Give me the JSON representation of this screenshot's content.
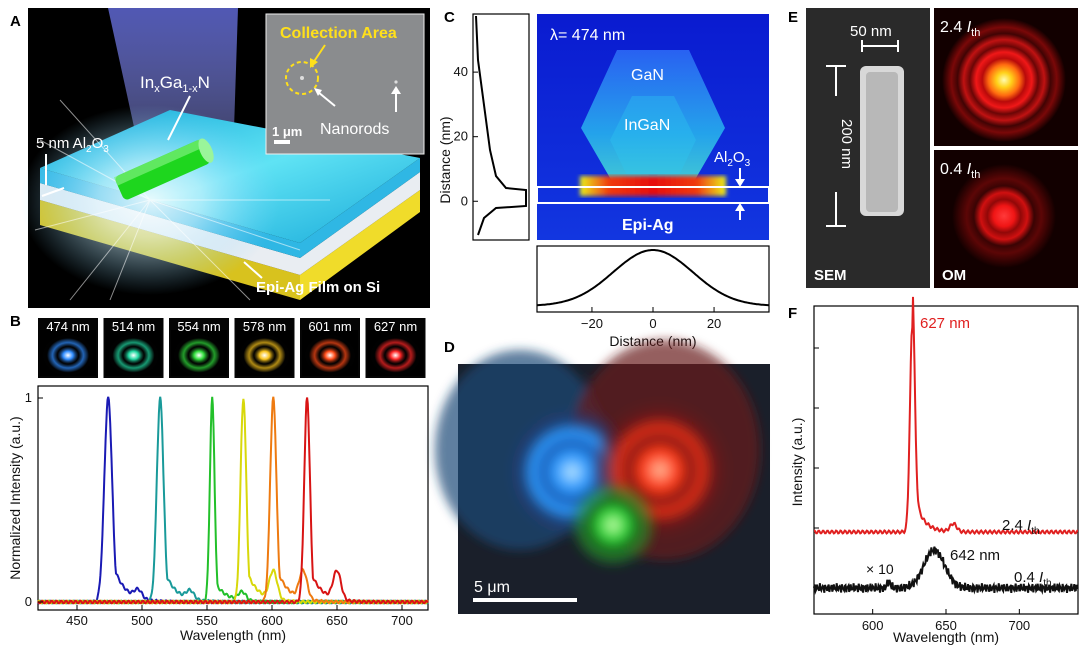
{
  "panels": {
    "A": {
      "label": "A",
      "inset": {
        "title": "Collection Area",
        "nanorods": "Nanorods",
        "scale": "1 μm"
      },
      "material": {
        "base": "In",
        "sub1": "x",
        "mid": "Ga",
        "sub2": "1-x",
        "end": "N"
      },
      "coating": {
        "pre": "5 nm Al",
        "s1": "2",
        "mid": "O",
        "s2": "3"
      },
      "film": "Epi-Ag Film on Si"
    },
    "B": {
      "label": "B",
      "spots": [
        "474 nm",
        "514 nm",
        "554 nm",
        "578 nm",
        "601 nm",
        "627 nm"
      ],
      "spot_colors": [
        "#2f8cff",
        "#1fd7a0",
        "#2fdc3a",
        "#f7c21a",
        "#ff4a16",
        "#ff2525"
      ]
    },
    "C": {
      "label": "C",
      "lambda": "λ= 474 nm",
      "layers": [
        "GaN",
        "InGaN",
        "Epi-Ag"
      ],
      "al2o3": {
        "pre": "Al",
        "s1": "2",
        "mid": "O",
        "s2": "3"
      }
    },
    "D": {
      "label": "D",
      "scale": "5 μm"
    },
    "E": {
      "label": "E",
      "width": "50 nm",
      "height": "200 nm",
      "sem": "SEM",
      "om": "OM",
      "high": "2.4",
      "low": "0.4",
      "ith": "I",
      "ith_sub": "th"
    },
    "F": {
      "label": "F",
      "peak": "627 nm",
      "peak2": "642 nm",
      "factor": "× 10",
      "high": "2.4",
      "low": "0.4",
      "ith": "I",
      "ith_sub": "th"
    }
  },
  "chart_data": [
    {
      "type": "line",
      "title": "",
      "xlabel": "Wavelength (nm)",
      "ylabel": "Normalized Intensity (a.u.)",
      "xlim": [
        420,
        720
      ],
      "ylim": [
        0,
        1
      ],
      "xticks": [
        "450",
        "500",
        "550",
        "600",
        "650",
        "700"
      ],
      "yticks": [
        "0",
        "1"
      ],
      "series": [
        {
          "name": "474 nm",
          "color": "#1a1ab4",
          "peak": 474,
          "width": 3.0,
          "tail": 0.28
        },
        {
          "name": "514 nm",
          "color": "#199a9a",
          "peak": 514,
          "width": 2.6,
          "tail": 0.22
        },
        {
          "name": "554 nm",
          "color": "#22c02a",
          "peak": 554,
          "width": 1.8,
          "tail": 0.12
        },
        {
          "name": "578 nm",
          "color": "#d8d80a",
          "peak": 578,
          "width": 2.2,
          "tail": 0.2
        },
        {
          "name": "601 nm",
          "color": "#ee7a10",
          "peak": 601,
          "width": 2.4,
          "tail": 0.22
        },
        {
          "name": "627 nm",
          "color": "#d81414",
          "peak": 627,
          "width": 2.2,
          "tail": 0.2
        }
      ]
    },
    {
      "type": "line",
      "title": "",
      "xlabel": "Distance (nm)",
      "ylabel": "Distance (nm)",
      "xlim": [
        -38,
        38
      ],
      "ylim": [
        -12,
        58
      ],
      "xticks": [
        "-20",
        "0",
        "20"
      ],
      "yticks": [
        "0",
        "20",
        "40"
      ],
      "series": [
        {
          "name": "horizontal profile",
          "values_note": "gaussian centered at 0, FWHM ~ 30 nm"
        }
      ]
    },
    {
      "type": "line",
      "title": "",
      "xlabel": "Wavelength (nm)",
      "ylabel": "Intensity (a.u.)",
      "xlim": [
        560,
        740
      ],
      "xticks": [
        "600",
        "650",
        "700"
      ],
      "series": [
        {
          "name": "2.4 Ith",
          "color": "#e02020",
          "peak": 627
        },
        {
          "name": "0.4 Ith (×10)",
          "color": "#111111",
          "peak": 642
        }
      ]
    }
  ]
}
